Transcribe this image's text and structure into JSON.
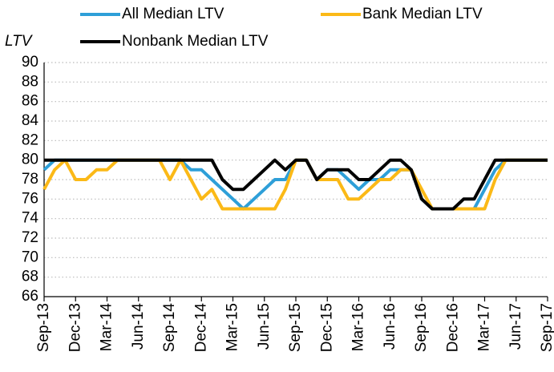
{
  "chart_data": {
    "type": "line",
    "y_label": "LTV",
    "categories": [
      "Sep-13",
      null,
      null,
      "Dec-13",
      null,
      null,
      "Mar-14",
      null,
      null,
      "Jun-14",
      null,
      null,
      "Sep-14",
      null,
      null,
      "Dec-14",
      null,
      null,
      "Mar-15",
      null,
      null,
      "Jun-15",
      null,
      null,
      "Sep-15",
      null,
      null,
      "Dec-15",
      null,
      null,
      "Mar-16",
      null,
      null,
      "Jun-16",
      null,
      null,
      "Sep-16",
      null,
      null,
      "Dec-16",
      null,
      null,
      "Mar-17",
      null,
      null,
      "Jun-17",
      null,
      null,
      "Sep-17"
    ],
    "series": [
      {
        "name": "All Median LTV",
        "color": "#2e9fd8",
        "values": [
          79,
          80,
          80,
          80,
          80,
          80,
          80,
          80,
          80,
          80,
          80,
          80,
          80,
          80,
          79,
          79,
          78,
          77,
          76,
          75,
          76,
          77,
          78,
          78,
          80,
          80,
          78,
          79,
          79,
          78,
          77,
          78,
          78,
          79,
          79,
          79,
          76,
          75,
          75,
          75,
          75,
          75,
          77,
          79,
          80,
          80,
          80,
          80,
          80
        ]
      },
      {
        "name": "Bank Median LTV",
        "color": "#fbb917",
        "values": [
          77,
          79,
          80,
          78,
          78,
          79,
          79,
          80,
          80,
          80,
          80,
          80,
          78,
          80,
          78,
          76,
          77,
          75,
          75,
          75,
          75,
          75,
          75,
          77,
          80,
          80,
          78,
          78,
          78,
          76,
          76,
          77,
          78,
          78,
          79,
          79,
          77,
          75,
          75,
          75,
          75,
          75,
          75,
          78,
          80,
          80,
          80,
          80,
          80
        ]
      },
      {
        "name": "Nonbank Median LTV",
        "color": "#000000",
        "values": [
          80,
          80,
          80,
          80,
          80,
          80,
          80,
          80,
          80,
          80,
          80,
          80,
          80,
          80,
          80,
          80,
          80,
          78,
          77,
          77,
          78,
          79,
          80,
          79,
          80,
          80,
          78,
          79,
          79,
          79,
          78,
          78,
          79,
          80,
          80,
          79,
          76,
          75,
          75,
          75,
          76,
          76,
          78,
          80,
          80,
          80,
          80,
          80,
          80
        ]
      }
    ],
    "ylim": [
      66,
      90
    ],
    "yticks": [
      66,
      68,
      70,
      72,
      74,
      76,
      78,
      80,
      82,
      84,
      86,
      88,
      90
    ],
    "grid": true
  }
}
